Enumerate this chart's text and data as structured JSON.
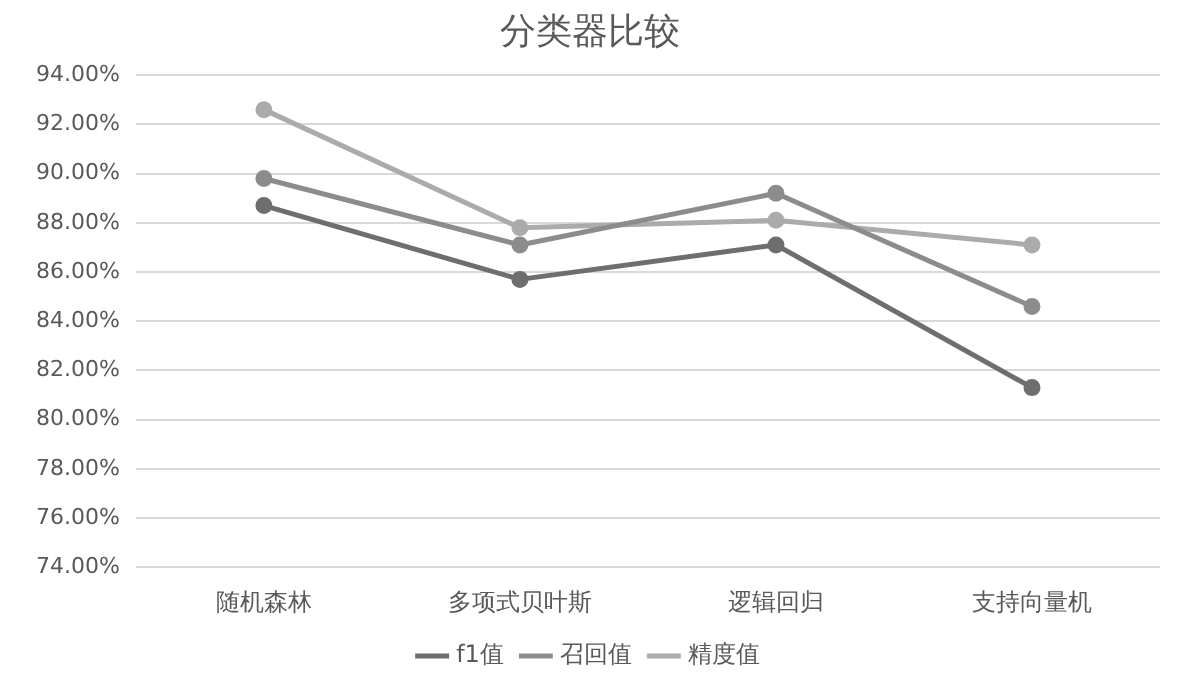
{
  "chart_data": {
    "type": "line",
    "title": "分类器比较",
    "categories": [
      "随机森林",
      "多项式贝叶斯",
      "逻辑回归",
      "支持向量机"
    ],
    "series": [
      {
        "name": "f1值",
        "color": "#6e6e6e",
        "values": [
          88.7,
          85.7,
          87.1,
          81.3
        ]
      },
      {
        "name": "召回值",
        "color": "#8c8c8c",
        "values": [
          89.8,
          87.1,
          89.2,
          84.6
        ]
      },
      {
        "name": "精度值",
        "color": "#ababab",
        "values": [
          92.6,
          87.8,
          88.1,
          87.1
        ]
      }
    ],
    "ylim": [
      74,
      94
    ],
    "yticks": [
      {
        "value": 74,
        "label": "74.00%"
      },
      {
        "value": 76,
        "label": "76.00%"
      },
      {
        "value": 78,
        "label": "78.00%"
      },
      {
        "value": 80,
        "label": "80.00%"
      },
      {
        "value": 82,
        "label": "82.00%"
      },
      {
        "value": 84,
        "label": "84.00%"
      },
      {
        "value": 86,
        "label": "86.00%"
      },
      {
        "value": 88,
        "label": "88.00%"
      },
      {
        "value": 90,
        "label": "90.00%"
      },
      {
        "value": 92,
        "label": "92.00%"
      },
      {
        "value": 94,
        "label": "94.00%"
      }
    ],
    "grid": "y",
    "legend": "bottom",
    "marker": "circle",
    "line_style": "solid"
  }
}
